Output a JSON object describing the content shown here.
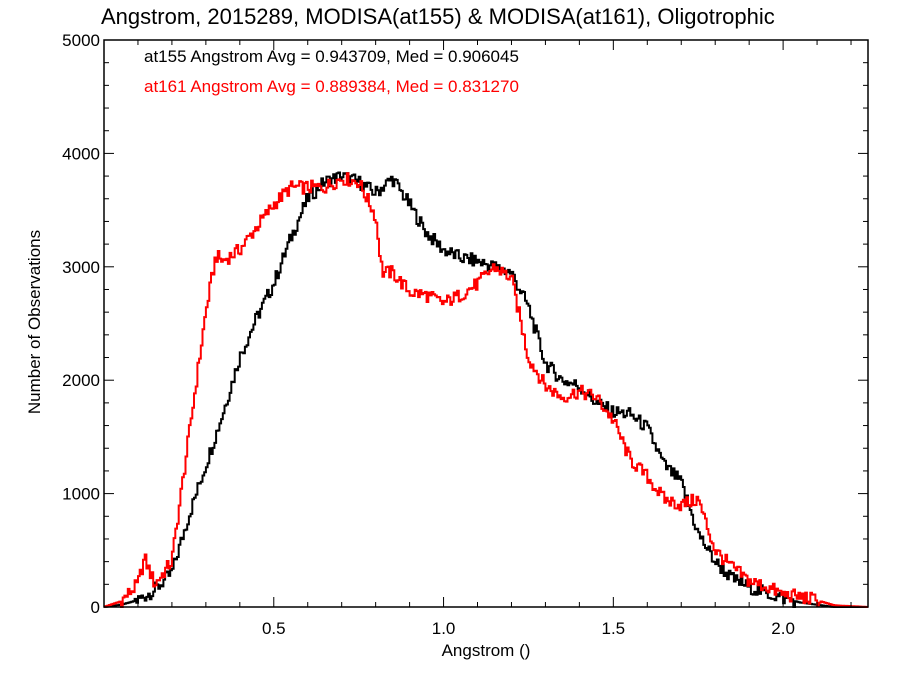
{
  "chart_data": {
    "type": "line",
    "title": "Angstrom, 2015289, MODISA(at155) & MODISA(at161), Oligotrophic",
    "xlabel": "Angstrom ()",
    "ylabel": "Number of Observations",
    "xlim": [
      0.0,
      2.25
    ],
    "ylim": [
      0,
      5000
    ],
    "xticks": [
      0.5,
      1.0,
      1.5,
      2.0
    ],
    "xtick_labels": [
      "0.5",
      "1.0",
      "1.5",
      "2.0"
    ],
    "yticks": [
      0,
      1000,
      2000,
      3000,
      4000,
      5000
    ],
    "ytick_labels": [
      "0",
      "1000",
      "2000",
      "3000",
      "4000",
      "5000"
    ],
    "grid": false,
    "annotations": [
      {
        "text": "at155 Angstrom Avg = 0.943709, Med = 0.906045",
        "color": "#000000"
      },
      {
        "text": "at161 Angstrom Avg = 0.889384, Med = 0.831270",
        "color": "#ff0000"
      }
    ],
    "series": [
      {
        "name": "at155",
        "color": "#000000",
        "x": [
          0.0,
          0.05,
          0.1,
          0.15,
          0.2,
          0.25,
          0.3,
          0.35,
          0.4,
          0.45,
          0.5,
          0.55,
          0.6,
          0.65,
          0.7,
          0.75,
          0.8,
          0.85,
          0.9,
          0.95,
          1.0,
          1.05,
          1.1,
          1.15,
          1.2,
          1.25,
          1.3,
          1.35,
          1.4,
          1.45,
          1.5,
          1.55,
          1.6,
          1.65,
          1.7,
          1.75,
          1.8,
          1.85,
          1.9,
          1.95,
          2.0,
          2.05,
          2.1,
          2.15,
          2.25
        ],
        "y": [
          0,
          20,
          60,
          150,
          300,
          800,
          1250,
          1700,
          2200,
          2550,
          2850,
          3250,
          3600,
          3750,
          3800,
          3750,
          3650,
          3780,
          3550,
          3300,
          3150,
          3080,
          3050,
          3000,
          2950,
          2650,
          2150,
          2000,
          1950,
          1800,
          1720,
          1700,
          1580,
          1250,
          1100,
          650,
          400,
          250,
          180,
          120,
          80,
          40,
          20,
          0,
          0
        ]
      },
      {
        "name": "at161",
        "color": "#ff0000",
        "x": [
          0.0,
          0.05,
          0.1,
          0.12,
          0.15,
          0.2,
          0.25,
          0.3,
          0.33,
          0.35,
          0.4,
          0.45,
          0.5,
          0.55,
          0.6,
          0.65,
          0.7,
          0.75,
          0.8,
          0.82,
          0.85,
          0.9,
          0.95,
          1.0,
          1.05,
          1.1,
          1.15,
          1.2,
          1.25,
          1.3,
          1.35,
          1.4,
          1.45,
          1.5,
          1.55,
          1.6,
          1.65,
          1.7,
          1.75,
          1.8,
          1.85,
          1.9,
          1.95,
          2.0,
          2.05,
          2.1,
          2.15,
          2.25
        ],
        "y": [
          0,
          50,
          200,
          430,
          200,
          400,
          1500,
          2600,
          3100,
          3050,
          3150,
          3350,
          3550,
          3700,
          3700,
          3700,
          3780,
          3750,
          3450,
          2950,
          2950,
          2780,
          2750,
          2680,
          2750,
          2850,
          3000,
          2900,
          2200,
          1950,
          1850,
          1900,
          1850,
          1650,
          1300,
          1150,
          950,
          900,
          950,
          500,
          350,
          230,
          180,
          110,
          90,
          60,
          15,
          0
        ]
      }
    ]
  }
}
